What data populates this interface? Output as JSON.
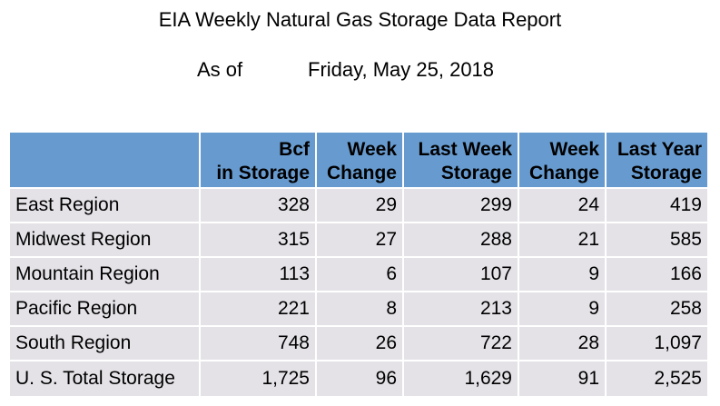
{
  "title": "EIA Weekly Natural Gas Storage Data Report",
  "as_of": {
    "label": "As of",
    "date": "Friday, May 25, 2018"
  },
  "table": {
    "headers": [
      {
        "line1": "",
        "line2": ""
      },
      {
        "line1": "Bcf",
        "line2": "in Storage"
      },
      {
        "line1": "Week",
        "line2": "Change"
      },
      {
        "line1": "Last Week",
        "line2": "Storage"
      },
      {
        "line1": "Week",
        "line2": "Change"
      },
      {
        "line1": "Last Year",
        "line2": "Storage"
      }
    ],
    "rows": [
      {
        "region": "East Region",
        "bcf": "328",
        "week_change": "29",
        "last_week": "299",
        "week_change_prev": "24",
        "last_year": "419"
      },
      {
        "region": "Midwest Region",
        "bcf": "315",
        "week_change": "27",
        "last_week": "288",
        "week_change_prev": "21",
        "last_year": "585"
      },
      {
        "region": "Mountain Region",
        "bcf": "113",
        "week_change": "6",
        "last_week": "107",
        "week_change_prev": "9",
        "last_year": "166"
      },
      {
        "region": "Pacific Region",
        "bcf": "221",
        "week_change": "8",
        "last_week": "213",
        "week_change_prev": "9",
        "last_year": "258"
      },
      {
        "region": "South Region",
        "bcf": "748",
        "week_change": "26",
        "last_week": "722",
        "week_change_prev": "28",
        "last_year": "1,097"
      },
      {
        "region": "U. S. Total Storage",
        "bcf": "1,725",
        "week_change": "96",
        "last_week": "1,629",
        "week_change_prev": "91",
        "last_year": "2,525"
      }
    ]
  },
  "colors": {
    "header_bg": "#679bd0",
    "cell_bg": "#e4e2e7"
  }
}
